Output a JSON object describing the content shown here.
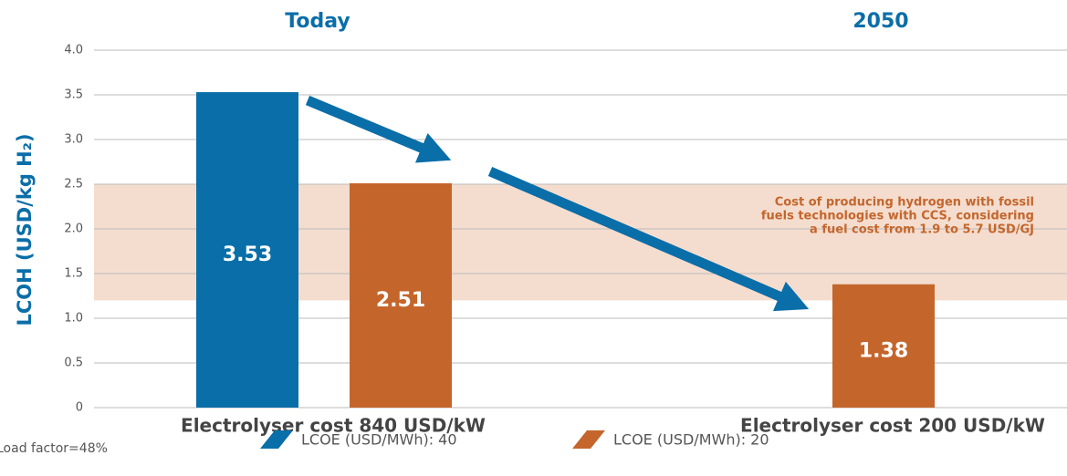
{
  "chart_data": {
    "type": "bar",
    "y_label": "LCOH (USD/kg H₂)",
    "group_labels": [
      "Today",
      "2050"
    ],
    "categories": [
      "Electrolyser cost 840 USD/kW",
      "Electrolyser cost 200 USD/kW"
    ],
    "series": [
      {
        "name": "LCOE (USD/MWh): 40",
        "color": "#0a6ea8",
        "values": [
          3.53,
          null
        ]
      },
      {
        "name": "LCOE (USD/MWh): 20",
        "color": "#c4662c",
        "values": [
          2.51,
          1.38
        ]
      }
    ],
    "ylim": [
      0,
      4
    ],
    "yticks": [
      0,
      0.5,
      {
        "value": 1,
        "label": "1.0"
      },
      1.5,
      {
        "value": 2,
        "label": "2.0"
      },
      2.5,
      {
        "value": 3,
        "label": "3.0"
      },
      3.5,
      {
        "value": 4,
        "label": "4.0"
      }
    ],
    "grid": true,
    "band": [
      1.2,
      2.5
    ],
    "band_color": "#f4ddcf",
    "annotation": [
      "Cost of producing hydrogen with fossil",
      "fuels technologies with CCS, considering",
      "a fuel cost from 1.9 to 5.7 USD/GJ"
    ],
    "footnote": "Load factor=48%"
  }
}
